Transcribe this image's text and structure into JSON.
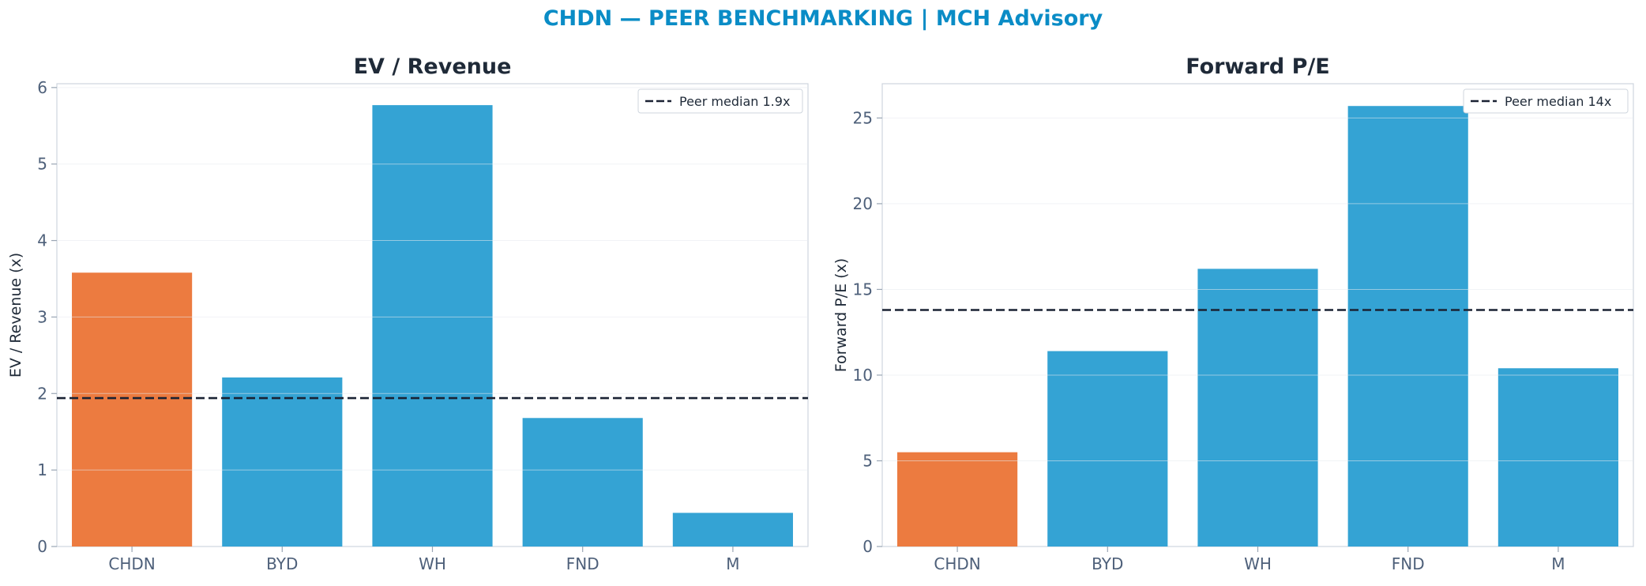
{
  "figure": {
    "title": "CHDN — PEER BENCHMARKING | MCH Advisory",
    "colors": {
      "title": "#0a8cc6",
      "highlight": "#ec7b40",
      "peer": "#34a3d4",
      "median_line": "#1a2233"
    }
  },
  "chart_data": [
    {
      "type": "bar",
      "title": "EV / Revenue",
      "xlabel": "",
      "ylabel": "EV / Revenue (x)",
      "categories": [
        "CHDN",
        "BYD",
        "WH",
        "FND",
        "M"
      ],
      "values": [
        3.58,
        2.21,
        5.77,
        1.68,
        0.44
      ],
      "highlight_category": "CHDN",
      "ylim": [
        0,
        6.05
      ],
      "yticks": [
        0,
        1,
        2,
        3,
        4,
        5,
        6
      ],
      "reference_line": {
        "value": 1.94,
        "label": "Peer median 1.9x",
        "style": "dashed"
      },
      "grid": true,
      "legend": "upper right"
    },
    {
      "type": "bar",
      "title": "Forward P/E",
      "xlabel": "",
      "ylabel": "Forward P/E (x)",
      "categories": [
        "CHDN",
        "BYD",
        "WH",
        "FND",
        "M"
      ],
      "values": [
        5.5,
        11.4,
        16.2,
        25.7,
        10.4
      ],
      "highlight_category": "CHDN",
      "ylim": [
        0,
        27
      ],
      "yticks": [
        0,
        5,
        10,
        15,
        20,
        25
      ],
      "reference_line": {
        "value": 13.8,
        "label": "Peer median 14x",
        "style": "dashed"
      },
      "grid": true,
      "legend": "upper right"
    }
  ]
}
